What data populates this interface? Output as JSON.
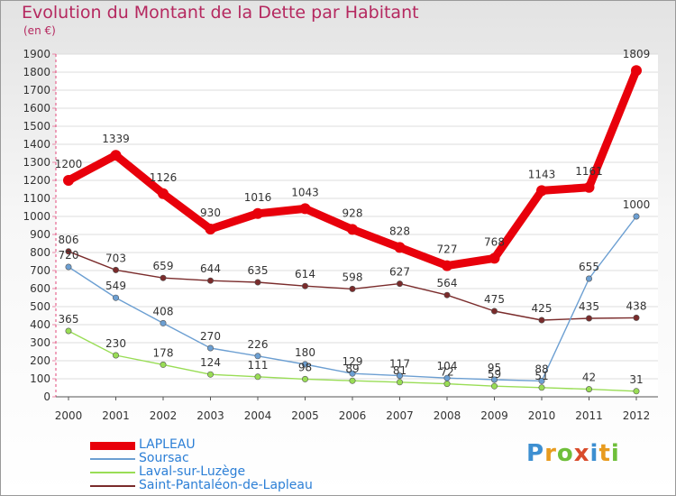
{
  "header": {
    "title": "Evolution du Montant de la Dette par Habitant",
    "subtitle": "(en €)"
  },
  "chart_data": {
    "type": "line",
    "title": "Evolution du Montant de la Dette par Habitant",
    "subtitle": "(en €)",
    "x": [
      "2000",
      "2001",
      "2002",
      "2003",
      "2004",
      "2005",
      "2006",
      "2007",
      "2008",
      "2009",
      "2010",
      "2011",
      "2012"
    ],
    "ylim": [
      0,
      1900
    ],
    "yticks": [
      0,
      100,
      200,
      300,
      400,
      500,
      600,
      700,
      800,
      900,
      1000,
      1100,
      1200,
      1300,
      1400,
      1500,
      1600,
      1700,
      1800,
      1900
    ],
    "grid": "horizontal",
    "legend_position": "bottom-left",
    "series": [
      {
        "name": "LAPLEAU",
        "color": "#e8000b",
        "values": [
          1200,
          1339,
          1126,
          930,
          1016,
          1043,
          928,
          828,
          727,
          768,
          1143,
          1161,
          1809
        ],
        "labels": [
          "1200",
          "1339",
          "1126",
          "930",
          "1016",
          "1043",
          "928",
          "828",
          "727",
          "768",
          "1143",
          "1161",
          "1809"
        ]
      },
      {
        "name": "Soursac",
        "color": "#6c9fd2",
        "values": [
          720,
          549,
          408,
          270,
          226,
          180,
          129,
          117,
          104,
          95,
          88,
          655,
          1000
        ],
        "labels": [
          "720",
          "549",
          "408",
          "270",
          "226",
          "180",
          "129",
          "117",
          "104",
          "95",
          "88",
          "655",
          "1000"
        ]
      },
      {
        "name": "Laval-sur-Luzège",
        "color": "#99dd55",
        "values": [
          365,
          230,
          178,
          124,
          111,
          98,
          89,
          81,
          72,
          59,
          51,
          42,
          31
        ],
        "labels": [
          "365",
          "230",
          "178",
          "124",
          "111",
          "98",
          "89",
          "81",
          "72",
          "59",
          "51",
          "42",
          "31"
        ]
      },
      {
        "name": "Saint-Pantaléon-de-Lapleau",
        "color": "#7a2b2b",
        "values": [
          806,
          703,
          659,
          644,
          635,
          614,
          598,
          627,
          564,
          475,
          425,
          435,
          438
        ],
        "labels": [
          "806",
          "703",
          "659",
          "644",
          "635",
          "614",
          "598",
          "627",
          "564",
          "475",
          "425",
          "435",
          "438"
        ]
      }
    ]
  },
  "logo": {
    "text": "Proxiti",
    "colors": [
      "#3d8fd1",
      "#e89b1e",
      "#6fbf3a",
      "#d94b2b",
      "#3d8fd1",
      "#e89b1e",
      "#6fbf3a"
    ]
  }
}
